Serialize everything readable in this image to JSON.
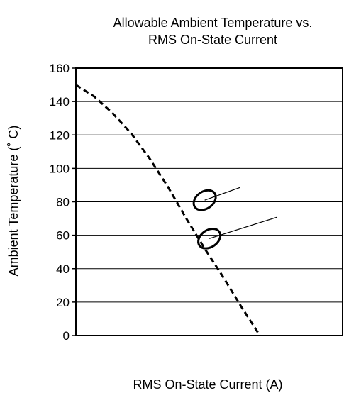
{
  "chart_data": {
    "type": "line",
    "title_lines": [
      "Allowable Ambient Temperature vs.",
      "RMS On-State Current"
    ],
    "xlabel": "RMS On-State Current  (A)",
    "ylabel": "Ambient Temperature  (˚ C)",
    "ylim": [
      0,
      160
    ],
    "yticks": [
      "0",
      "20",
      "40",
      "60",
      "80",
      "100",
      "120",
      "140",
      "160"
    ],
    "xticks": [],
    "grid": "horizontal",
    "series": [
      {
        "style": "dashed",
        "x": [
          0,
          0.1,
          0.2,
          0.3,
          0.4,
          0.5,
          0.6,
          0.7,
          0.8,
          0.9,
          1.0
        ],
        "y": [
          150,
          143,
          133,
          121,
          106,
          89,
          70,
          52,
          35,
          17,
          0
        ]
      }
    ],
    "annotations": [
      {
        "shape": "ellipse",
        "x": 0.7,
        "y": 81
      },
      {
        "shape": "ellipse",
        "x": 0.725,
        "y": 58
      }
    ],
    "colors": {
      "line": "#000000",
      "grid": "#000000",
      "background": "#ffffff"
    }
  }
}
